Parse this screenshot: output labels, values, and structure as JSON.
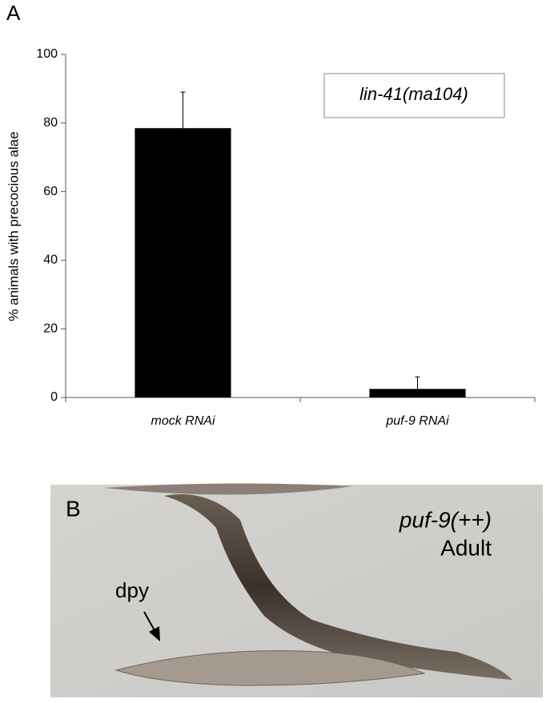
{
  "panel_labels": [
    "A",
    "B"
  ],
  "chart_data": {
    "type": "bar",
    "ylabel": "% animals with precocious alae",
    "categories": [
      "mock RNAi",
      "puf-9 RNAi"
    ],
    "values": [
      78.5,
      2.5
    ],
    "errors": [
      10.5,
      3.5
    ],
    "color": "#000000",
    "ylim": [
      0,
      100
    ],
    "yticks": [
      0,
      20,
      40,
      60,
      80,
      100
    ],
    "annotation": "lin-41(ma104)"
  },
  "image": {
    "title": "puf-9(++)",
    "subtitle": "Adult",
    "arrow_label": "dpy"
  }
}
